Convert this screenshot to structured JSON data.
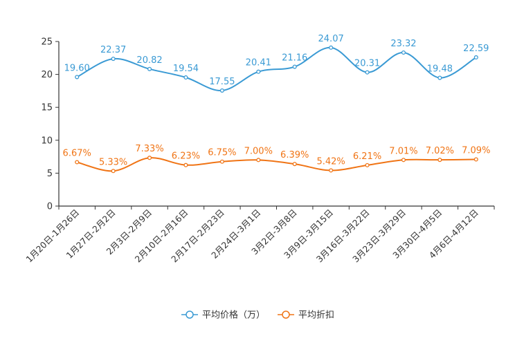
{
  "chart_data": {
    "type": "line",
    "categories": [
      "1月20日-1月26日",
      "1月27日-2月2日",
      "2月3日-2月9日",
      "2月10日-2月16日",
      "2月17日-2月23日",
      "2月24日-3月1日",
      "3月2日-3月8日",
      "3月9日-3月15日",
      "3月16日-3月22日",
      "3月23日-3月29日",
      "3月30日-4月5日",
      "4月6日-4月12日"
    ],
    "series": [
      {
        "name": "平均价格（万）",
        "color": "#3a9ad4",
        "values": [
          19.6,
          22.37,
          20.82,
          19.54,
          17.55,
          20.41,
          21.16,
          24.07,
          20.31,
          23.32,
          19.48,
          22.59
        ],
        "labels": [
          "19.60",
          "22.37",
          "20.82",
          "19.54",
          "17.55",
          "20.41",
          "21.16",
          "24.07",
          "20.31",
          "23.32",
          "19.48",
          "22.59"
        ]
      },
      {
        "name": "平均折扣",
        "color": "#f07415",
        "values": [
          6.67,
          5.33,
          7.33,
          6.23,
          6.75,
          7.0,
          6.39,
          5.42,
          6.21,
          7.01,
          7.02,
          7.09
        ],
        "labels": [
          "6.67%",
          "5.33%",
          "7.33%",
          "6.23%",
          "6.75%",
          "7.00%",
          "6.39%",
          "5.42%",
          "6.21%",
          "7.01%",
          "7.02%",
          "7.09%"
        ]
      }
    ],
    "ylim": [
      0,
      25
    ],
    "yticks": [
      "0",
      "5",
      "10",
      "15",
      "20",
      "25"
    ],
    "title": "",
    "xlabel": "",
    "ylabel": "",
    "grid": false,
    "legend_position": "bottom-center"
  }
}
